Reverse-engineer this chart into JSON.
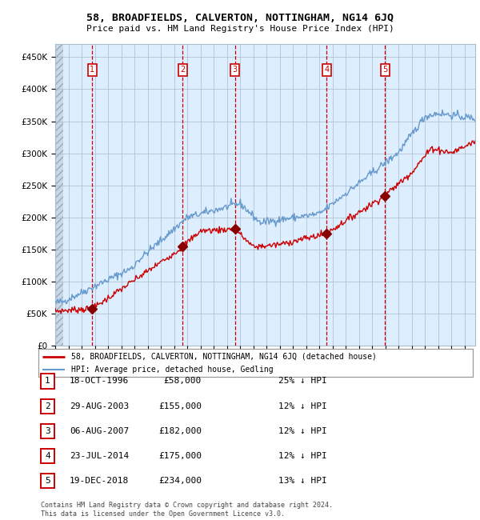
{
  "title": "58, BROADFIELDS, CALVERTON, NOTTINGHAM, NG14 6JQ",
  "subtitle": "Price paid vs. HM Land Registry's House Price Index (HPI)",
  "legend_line1": "58, BROADFIELDS, CALVERTON, NOTTINGHAM, NG14 6JQ (detached house)",
  "legend_line2": "HPI: Average price, detached house, Gedling",
  "footer": "Contains HM Land Registry data © Crown copyright and database right 2024.\nThis data is licensed under the Open Government Licence v3.0.",
  "transactions": [
    {
      "num": 1,
      "date": "18-OCT-1996",
      "price": 58000,
      "pct": "25% ↓ HPI",
      "year": 1996.79
    },
    {
      "num": 2,
      "date": "29-AUG-2003",
      "price": 155000,
      "pct": "12% ↓ HPI",
      "year": 2003.66
    },
    {
      "num": 3,
      "date": "06-AUG-2007",
      "price": 182000,
      "pct": "12% ↓ HPI",
      "year": 2007.6
    },
    {
      "num": 4,
      "date": "23-JUL-2014",
      "price": 175000,
      "pct": "12% ↓ HPI",
      "year": 2014.56
    },
    {
      "num": 5,
      "date": "19-DEC-2018",
      "price": 234000,
      "pct": "13% ↓ HPI",
      "year": 2018.96
    }
  ],
  "red_line_color": "#cc0000",
  "blue_line_color": "#6699cc",
  "background_color": "#ddeeff",
  "grid_color": "#aabbcc",
  "marker_color": "#880000",
  "dashed_color": "#cc0000",
  "ylim": [
    0,
    470000
  ],
  "xlim_start": 1994.0,
  "xlim_end": 2025.8
}
